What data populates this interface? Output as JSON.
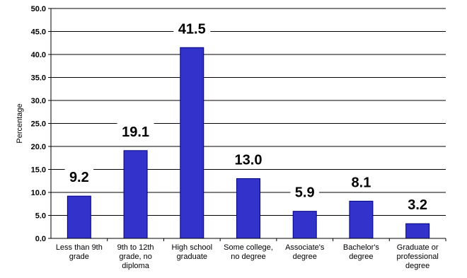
{
  "chart_data": {
    "type": "bar",
    "categories": [
      "Less than 9th grade",
      "9th to 12th grade, no diploma",
      "High school graduate",
      "Some college, no degree",
      "Associate's degree",
      "Bachelor's degree",
      "Graduate or professional degree"
    ],
    "category_lines": [
      [
        "Less than 9th",
        "grade"
      ],
      [
        "9th to 12th",
        "grade, no",
        "diploma"
      ],
      [
        "High school",
        "graduate"
      ],
      [
        "Some college,",
        "no degree"
      ],
      [
        "Associate's",
        "degree"
      ],
      [
        "Bachelor's",
        "degree"
      ],
      [
        "Graduate or",
        "professional",
        "degree"
      ]
    ],
    "values": [
      9.2,
      19.1,
      41.5,
      13.0,
      5.9,
      8.1,
      3.2
    ],
    "value_labels": [
      "9.2",
      "19.1",
      "41.5",
      "13.0",
      "5.9",
      "8.1",
      "3.2"
    ],
    "ylabel": "Percentage",
    "xlabel": "",
    "title": "",
    "ylim": [
      0,
      50
    ],
    "yticks": [
      "0.0",
      "5.0",
      "10.0",
      "15.0",
      "20.0",
      "25.0",
      "30.0",
      "35.0",
      "40.0",
      "45.0",
      "50.0"
    ],
    "grid": true,
    "legend": "none",
    "colors": {
      "bar": "#3333cc",
      "bar_edge": "#000080",
      "grid": "#000000",
      "axis": "#000000"
    }
  }
}
